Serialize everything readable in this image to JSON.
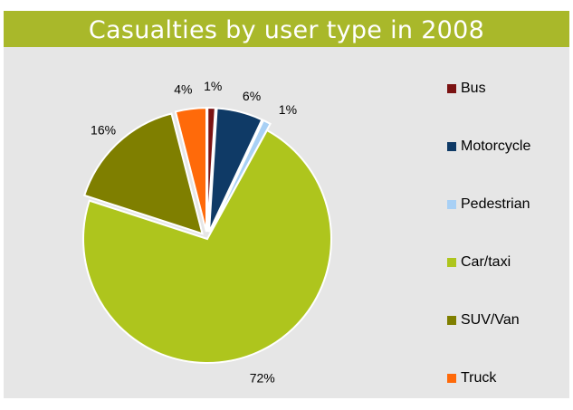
{
  "chart_data": {
    "type": "pie",
    "title": "Casualties by user type in 2008",
    "categories": [
      "Bus",
      "Motorcycle",
      "Pedestrian",
      "Car/taxi",
      "SUV/Van",
      "Truck"
    ],
    "values": [
      1,
      6,
      1,
      72,
      16,
      4
    ],
    "data_labels": [
      "1%",
      "6%",
      "1%",
      "72%",
      "16%",
      "4%"
    ],
    "colors": [
      "#7b1313",
      "#0f3a66",
      "#a8d0f5",
      "#aec51d",
      "#7f7f00",
      "#ff6a0a"
    ],
    "exploded": [
      true,
      true,
      true,
      false,
      true,
      true
    ],
    "legend_position": "right",
    "start_angle_deg": 0
  }
}
